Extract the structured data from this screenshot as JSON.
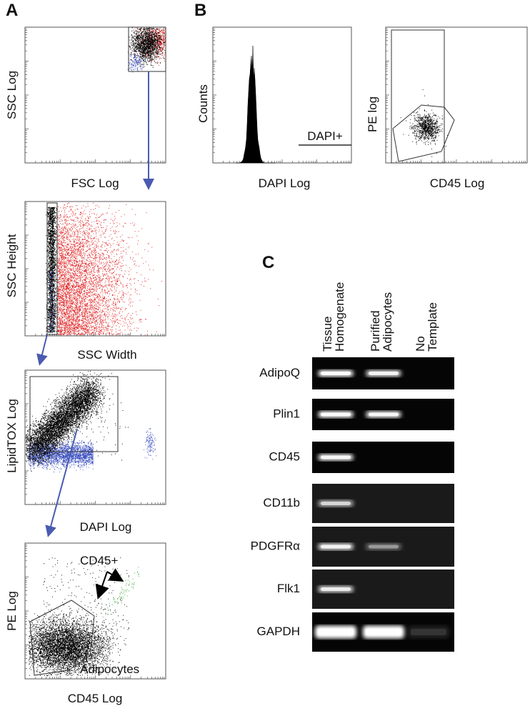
{
  "panel_a": {
    "letter": "A",
    "plots": [
      {
        "y_label": "SSC Log",
        "x_label": "FSC Log"
      },
      {
        "y_label": "SSC Height",
        "x_label": "SSC Width"
      },
      {
        "y_label": "LipidTOX Log",
        "x_label": "DAPI Log"
      },
      {
        "y_label": "PE Log",
        "x_label": "CD45 Log",
        "annotations": [
          "CD45+",
          "Adipocytes"
        ]
      }
    ]
  },
  "panel_b": {
    "letter": "B",
    "plots": [
      {
        "y_label": "Counts",
        "x_label": "DAPI Log",
        "gate_label": "DAPI+"
      },
      {
        "y_label": "PE log",
        "x_label": "CD45 Log"
      }
    ]
  },
  "panel_c": {
    "letter": "C",
    "lanes": [
      [
        "Tissue",
        "Homogenate"
      ],
      [
        "Purified",
        "Adipocytes"
      ],
      [
        "No",
        "Template"
      ]
    ],
    "genes": [
      "AdipoQ",
      "Plin1",
      "CD45",
      "CD11b",
      "PDGFRα",
      "Flk1",
      "GAPDH"
    ]
  }
}
